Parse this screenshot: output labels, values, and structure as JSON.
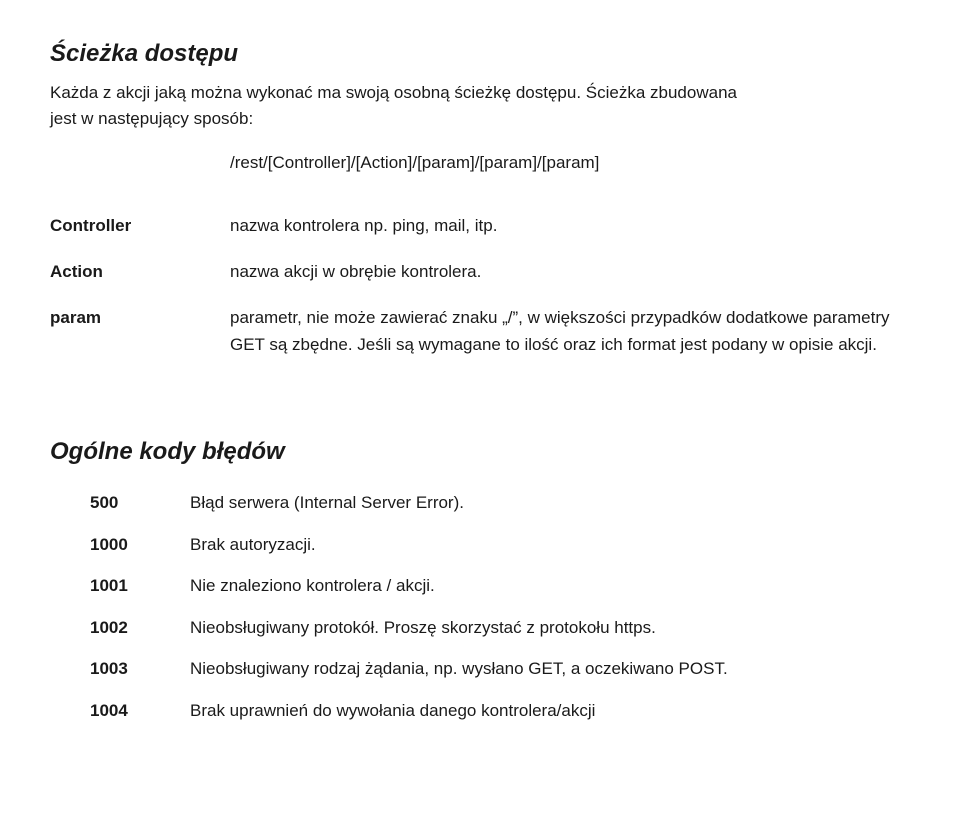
{
  "path_section": {
    "title": "Ścieżka dostępu",
    "intro_line1": "Każda z akcji jaką można wykonać ma swoją osobną ścieżkę dostępu. Ścieżka zbudowana",
    "intro_line2": "jest w następujący sposób:",
    "path_pattern": "/rest/[Controller]/[Action]/[param]/[param]/[param]",
    "definitions": [
      {
        "term": "Controller",
        "desc": "nazwa kontrolera np. ping, mail, itp."
      },
      {
        "term": "Action",
        "desc": "nazwa akcji w obrębie kontrolera."
      },
      {
        "term": "param",
        "desc": "parametr, nie może zawierać znaku „/”, w większości przypadków dodatkowe parametry GET są zbędne. Jeśli są wymagane to ilość oraz ich format jest podany w opisie akcji."
      }
    ]
  },
  "errors_section": {
    "title": "Ogólne kody błędów",
    "rows": [
      {
        "code": "500",
        "desc": "Błąd serwera (Internal Server Error)."
      },
      {
        "code": "1000",
        "desc": "Brak autoryzacji."
      },
      {
        "code": "1001",
        "desc": "Nie znaleziono kontrolera / akcji."
      },
      {
        "code": "1002",
        "desc": "Nieobsługiwany protokół. Proszę skorzystać z protokołu https."
      },
      {
        "code": "1003",
        "desc": "Nieobsługiwany rodzaj żądania, np. wysłano GET, a oczekiwano POST."
      },
      {
        "code": "1004",
        "desc": "Brak uprawnień do wywołania danego kontrolera/akcji"
      }
    ]
  }
}
